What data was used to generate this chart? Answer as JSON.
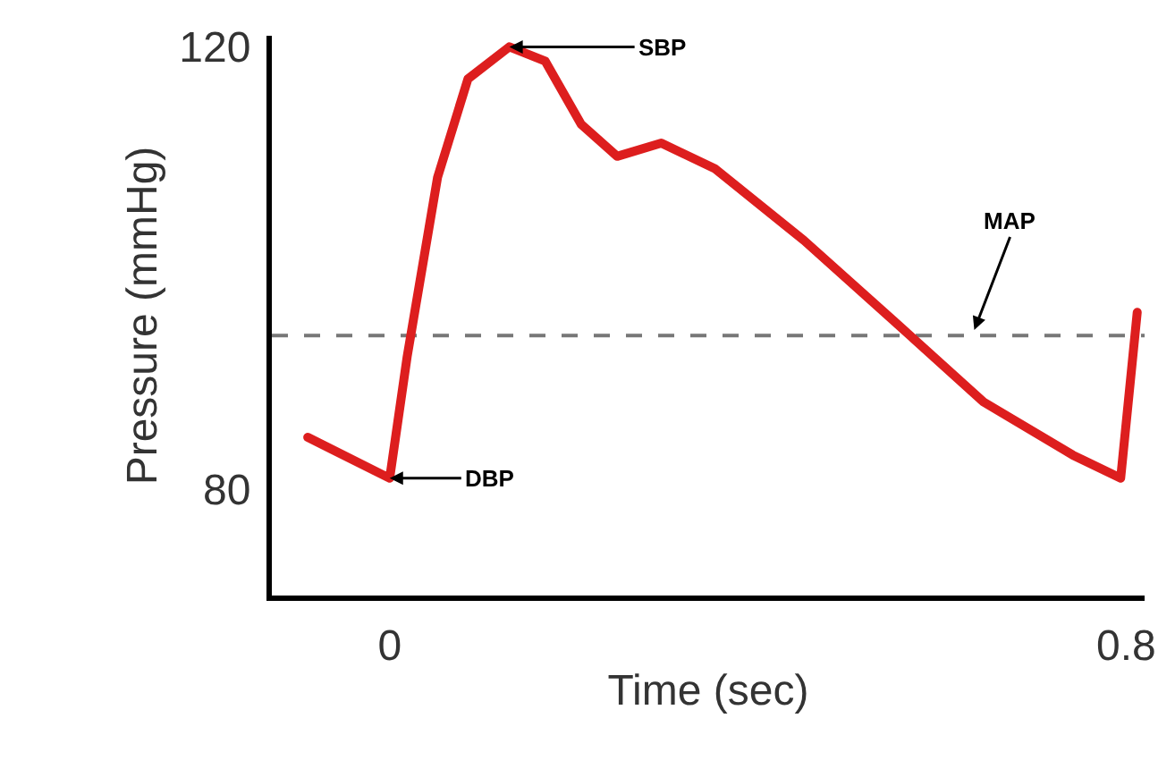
{
  "chart_data": {
    "type": "line",
    "xlabel": "Time (sec)",
    "ylabel": "Pressure (mmHg)",
    "x": [
      -0.089,
      0,
      0.019,
      0.052,
      0.085,
      0.13,
      0.169,
      0.208,
      0.247,
      0.295,
      0.353,
      0.45,
      0.548,
      0.645,
      0.742,
      0.794,
      0.812
    ],
    "series": [
      {
        "color": "#dd1e1e",
        "values": [
          84.7,
          81,
          92,
          108.2,
          117.1,
          120,
          118.7,
          113,
          110.1,
          111.3,
          109,
          102.5,
          95.2,
          87.9,
          83.1,
          81,
          96
        ]
      }
    ],
    "xlim": [
      -0.128,
      0.82
    ],
    "ylim": [
      70.4,
      121
    ],
    "xticks": [
      0,
      0.8
    ],
    "yticks": [
      80,
      120
    ],
    "legend": false,
    "marker": "none",
    "line_style": "solid",
    "ref_lines": [
      {
        "axis": "y",
        "value": 93.9,
        "color": "#777777",
        "line_style": "dashed"
      }
    ],
    "annotations": [
      {
        "text": "SBP",
        "x": 0.13,
        "y": 120
      },
      {
        "text": "MAP",
        "x": 0.635,
        "y": 94.4
      },
      {
        "text": "DBP",
        "x": 0,
        "y": 81
      }
    ]
  }
}
